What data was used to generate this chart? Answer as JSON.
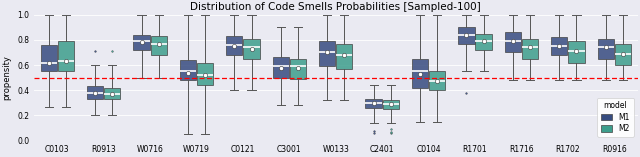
{
  "title": "Distribution of Code Smells Probabilities [Sampled-100]",
  "ylabel": "propensity",
  "hline_y": 0.5,
  "hline_color": "red",
  "hline_style": "--",
  "ylim": [
    0.0,
    1.0
  ],
  "yticks": [
    0.0,
    0.2,
    0.4,
    0.6,
    0.8,
    1.0
  ],
  "categories": [
    "C0103",
    "R0913",
    "W0716",
    "W0719",
    "C0121",
    "C3001",
    "W0133",
    "C2401",
    "C0104",
    "R1701",
    "R1716",
    "R1702",
    "R0916"
  ],
  "legend_title": "model",
  "legend_labels": [
    "M1",
    "M2"
  ],
  "model1_color": "#374c80",
  "model2_color": "#3d9e8c",
  "background_color": "#EAEAF2",
  "boxes": {
    "C0103": {
      "m1": {
        "q1": 0.55,
        "q2": 0.62,
        "q3": 0.76,
        "whislo": 0.27,
        "whishi": 1.0,
        "mean": 0.62,
        "fliers_low": [],
        "fliers_high": []
      },
      "m2": {
        "q1": 0.55,
        "q2": 0.63,
        "q3": 0.79,
        "whislo": 0.27,
        "whishi": 1.0,
        "mean": 0.63,
        "fliers_low": [],
        "fliers_high": []
      }
    },
    "R0913": {
      "m1": {
        "q1": 0.33,
        "q2": 0.38,
        "q3": 0.43,
        "whislo": 0.2,
        "whishi": 0.6,
        "mean": 0.38,
        "fliers_low": [],
        "fliers_high": [
          0.71
        ]
      },
      "m2": {
        "q1": 0.33,
        "q2": 0.37,
        "q3": 0.42,
        "whislo": 0.2,
        "whishi": 0.6,
        "mean": 0.37,
        "fliers_low": [],
        "fliers_high": [
          0.71
        ]
      }
    },
    "W0716": {
      "m1": {
        "q1": 0.72,
        "q2": 0.79,
        "q3": 0.84,
        "whislo": 0.5,
        "whishi": 1.0,
        "mean": 0.78,
        "fliers_low": [],
        "fliers_high": []
      },
      "m2": {
        "q1": 0.68,
        "q2": 0.77,
        "q3": 0.83,
        "whislo": 0.5,
        "whishi": 1.0,
        "mean": 0.77,
        "fliers_low": [],
        "fliers_high": []
      }
    },
    "W0719": {
      "m1": {
        "q1": 0.48,
        "q2": 0.55,
        "q3": 0.64,
        "whislo": 0.05,
        "whishi": 1.0,
        "mean": 0.54,
        "fliers_low": [],
        "fliers_high": []
      },
      "m2": {
        "q1": 0.44,
        "q2": 0.52,
        "q3": 0.62,
        "whislo": 0.05,
        "whishi": 1.0,
        "mean": 0.52,
        "fliers_low": [],
        "fliers_high": []
      }
    },
    "C0121": {
      "m1": {
        "q1": 0.68,
        "q2": 0.76,
        "q3": 0.83,
        "whislo": 0.4,
        "whishi": 1.0,
        "mean": 0.75,
        "fliers_low": [],
        "fliers_high": []
      },
      "m2": {
        "q1": 0.65,
        "q2": 0.74,
        "q3": 0.81,
        "whislo": 0.4,
        "whishi": 1.0,
        "mean": 0.73,
        "fliers_low": [],
        "fliers_high": []
      }
    },
    "C3001": {
      "m1": {
        "q1": 0.5,
        "q2": 0.59,
        "q3": 0.66,
        "whislo": 0.28,
        "whishi": 0.9,
        "mean": 0.58,
        "fliers_low": [],
        "fliers_high": []
      },
      "m2": {
        "q1": 0.49,
        "q2": 0.59,
        "q3": 0.65,
        "whislo": 0.28,
        "whishi": 0.9,
        "mean": 0.58,
        "fliers_low": [],
        "fliers_high": []
      }
    },
    "W0133": {
      "m1": {
        "q1": 0.59,
        "q2": 0.7,
        "q3": 0.79,
        "whislo": 0.32,
        "whishi": 1.0,
        "mean": 0.7,
        "fliers_low": [],
        "fliers_high": []
      },
      "m2": {
        "q1": 0.57,
        "q2": 0.68,
        "q3": 0.77,
        "whislo": 0.32,
        "whishi": 1.0,
        "mean": 0.68,
        "fliers_low": [],
        "fliers_high": []
      }
    },
    "C2401": {
      "m1": {
        "q1": 0.26,
        "q2": 0.3,
        "q3": 0.33,
        "whislo": 0.14,
        "whishi": 0.44,
        "mean": 0.3,
        "fliers_low": [
          0.06,
          0.08
        ],
        "fliers_high": []
      },
      "m2": {
        "q1": 0.25,
        "q2": 0.29,
        "q3": 0.32,
        "whislo": 0.14,
        "whishi": 0.44,
        "mean": 0.29,
        "fliers_low": [
          0.06,
          0.07,
          0.09
        ],
        "fliers_high": []
      }
    },
    "C0104": {
      "m1": {
        "q1": 0.42,
        "q2": 0.55,
        "q3": 0.65,
        "whislo": 0.15,
        "whishi": 1.0,
        "mean": 0.53,
        "fliers_low": [],
        "fliers_high": []
      },
      "m2": {
        "q1": 0.4,
        "q2": 0.47,
        "q3": 0.55,
        "whislo": 0.15,
        "whishi": 1.0,
        "mean": 0.47,
        "fliers_low": [],
        "fliers_high": []
      }
    },
    "R1701": {
      "m1": {
        "q1": 0.77,
        "q2": 0.84,
        "q3": 0.9,
        "whislo": 0.55,
        "whishi": 1.0,
        "mean": 0.84,
        "fliers_low": [
          0.38
        ],
        "fliers_high": []
      },
      "m2": {
        "q1": 0.72,
        "q2": 0.79,
        "q3": 0.85,
        "whislo": 0.55,
        "whishi": 1.0,
        "mean": 0.79,
        "fliers_low": [],
        "fliers_high": []
      }
    },
    "R1716": {
      "m1": {
        "q1": 0.7,
        "q2": 0.79,
        "q3": 0.86,
        "whislo": 0.48,
        "whishi": 1.0,
        "mean": 0.79,
        "fliers_low": [],
        "fliers_high": []
      },
      "m2": {
        "q1": 0.65,
        "q2": 0.74,
        "q3": 0.81,
        "whislo": 0.48,
        "whishi": 1.0,
        "mean": 0.74,
        "fliers_low": [],
        "fliers_high": []
      }
    },
    "R1702": {
      "m1": {
        "q1": 0.68,
        "q2": 0.75,
        "q3": 0.82,
        "whislo": 0.48,
        "whishi": 1.0,
        "mean": 0.75,
        "fliers_low": [],
        "fliers_high": []
      },
      "m2": {
        "q1": 0.62,
        "q2": 0.71,
        "q3": 0.79,
        "whislo": 0.48,
        "whishi": 1.0,
        "mean": 0.71,
        "fliers_low": [],
        "fliers_high": []
      }
    },
    "R0916": {
      "m1": {
        "q1": 0.65,
        "q2": 0.74,
        "q3": 0.81,
        "whislo": 0.48,
        "whishi": 1.0,
        "mean": 0.74,
        "fliers_low": [],
        "fliers_high": []
      },
      "m2": {
        "q1": 0.6,
        "q2": 0.69,
        "q3": 0.77,
        "whislo": 0.48,
        "whishi": 1.0,
        "mean": 0.69,
        "fliers_low": [],
        "fliers_high": []
      }
    }
  }
}
